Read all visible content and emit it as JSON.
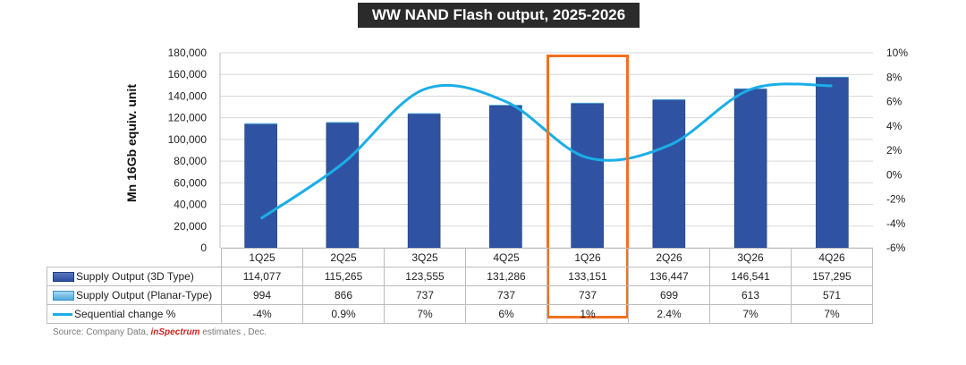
{
  "chart_data": {
    "type": "bar",
    "title": "WW NAND Flash output, 2025-2026",
    "ylabel": "Mn 16Gb equiv. unit",
    "ylim": [
      0,
      180000
    ],
    "y_ticks": [
      "0",
      "20,000",
      "40,000",
      "60,000",
      "80,000",
      "100,000",
      "120,000",
      "140,000",
      "160,000",
      "180,000"
    ],
    "y2lim": [
      -6,
      10
    ],
    "y2_ticks": [
      "-6%",
      "-4%",
      "-2%",
      "0%",
      "2%",
      "4%",
      "6%",
      "8%",
      "10%"
    ],
    "categories": [
      "1Q25",
      "2Q25",
      "3Q25",
      "4Q25",
      "1Q26",
      "2Q26",
      "3Q26",
      "4Q26"
    ],
    "series": [
      {
        "name": "Supply Output (3D Type)",
        "kind": "bar",
        "color": "#2f53a2",
        "values": [
          114077,
          115265,
          123555,
          131286,
          133151,
          136447,
          146541,
          157295
        ],
        "labels": [
          "114,077",
          "115,265",
          "123,555",
          "131,286",
          "133,151",
          "136,447",
          "146,541",
          "157,295"
        ]
      },
      {
        "name": "Supply Output (Planar-Type)",
        "kind": "bar-stacked",
        "color": "#5fb4e5",
        "values": [
          994,
          866,
          737,
          737,
          737,
          699,
          613,
          571
        ],
        "labels": [
          "994",
          "866",
          "737",
          "737",
          "737",
          "699",
          "613",
          "571"
        ]
      },
      {
        "name": "Sequential change %",
        "kind": "line",
        "axis": "right",
        "color": "#1aaee8",
        "values": [
          -3.6,
          0.9,
          7.0,
          6.0,
          1.4,
          2.4,
          7.0,
          7.3
        ],
        "labels": [
          "-4%",
          "0.9%",
          "7%",
          "6%",
          "1%",
          "2.4%",
          "7%",
          "7%"
        ]
      }
    ],
    "highlight_category": "1Q26"
  },
  "source": {
    "prefix": "Source: Company Data, ",
    "brand": "inSpectrum",
    "suffix": " estimates , Dec."
  }
}
